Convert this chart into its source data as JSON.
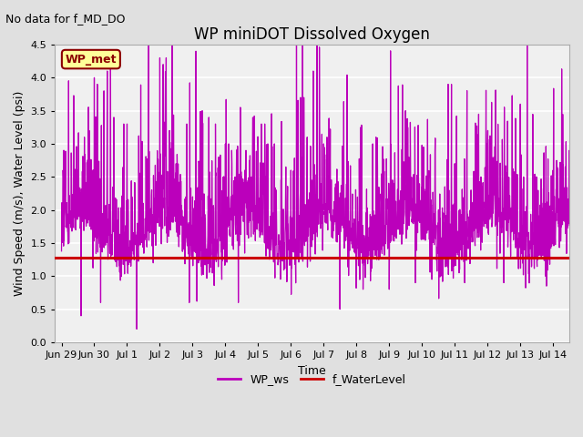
{
  "title": "WP miniDOT Dissolved Oxygen",
  "subtitle": "No data for f_MD_DO",
  "xlabel": "Time",
  "ylabel": "Wind Speed (m/s), Water Level (psi)",
  "ylim": [
    0.0,
    4.5
  ],
  "yticks": [
    0.0,
    0.5,
    1.0,
    1.5,
    2.0,
    2.5,
    3.0,
    3.5,
    4.0,
    4.5
  ],
  "date_labels": [
    "Jun 29",
    "Jun 30",
    "Jul 1",
    "Jul 2",
    "Jul 3",
    "Jul 4",
    "Jul 5",
    "Jul 6",
    "Jul 7",
    "Jul 8",
    "Jul 9",
    "Jul 10",
    "Jul 11",
    "Jul 12",
    "Jul 13",
    "Jul 14"
  ],
  "date_positions": [
    0,
    1,
    2,
    3,
    4,
    5,
    6,
    7,
    8,
    9,
    10,
    11,
    12,
    13,
    14,
    15
  ],
  "wp_ws_color": "#BB00BB",
  "f_waterlevel_color": "#CC0000",
  "f_waterlevel_value": 1.28,
  "legend_label_ws": "WP_ws",
  "legend_label_wl": "f_WaterLevel",
  "annotation_label": "WP_met",
  "bg_color": "#e0e0e0",
  "plot_bg_color": "#f0f0f0",
  "grid_color": "#ffffff",
  "title_fontsize": 12,
  "label_fontsize": 9,
  "tick_fontsize": 8
}
